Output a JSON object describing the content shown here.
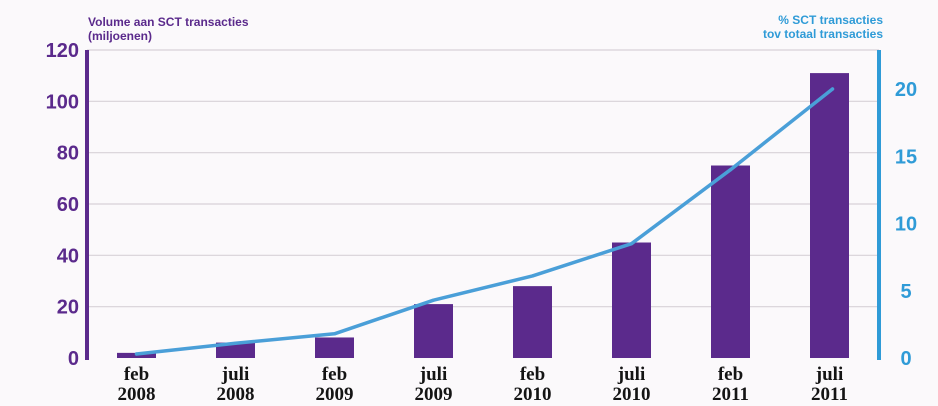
{
  "chart_data": {
    "type": "bar",
    "categories": [
      "feb 2008",
      "juli 2008",
      "feb 2009",
      "juli 2009",
      "feb 2010",
      "juli 2010",
      "feb 2011",
      "juli 2011"
    ],
    "category_lines": [
      [
        "feb",
        "2008"
      ],
      [
        "juli",
        "2008"
      ],
      [
        "feb",
        "2009"
      ],
      [
        "juli",
        "2009"
      ],
      [
        "feb",
        "2010"
      ],
      [
        "juli",
        "2010"
      ],
      [
        "feb",
        "2011"
      ],
      [
        "juli",
        "2011"
      ]
    ],
    "series": [
      {
        "name": "Volume aan SCT transacties (miljoenen)",
        "type": "bar",
        "axis": "left",
        "color": "#5b2a8c",
        "values": [
          2,
          6,
          8,
          21,
          28,
          45,
          75,
          111
        ]
      },
      {
        "name": "% SCT transacties tov totaal transacties",
        "type": "line",
        "axis": "right",
        "color": "#4a9fd8",
        "values": [
          0.3,
          1.1,
          1.8,
          4.3,
          6.1,
          8.5,
          14.0,
          20.0
        ]
      }
    ],
    "left_axis": {
      "title_lines": [
        "Volume aan SCT transacties",
        "(miljoenen)"
      ],
      "ticks": [
        "0",
        "20",
        "40",
        "60",
        "80",
        "100",
        "120"
      ],
      "ylim": [
        0,
        120
      ]
    },
    "right_axis": {
      "title_lines": [
        "% SCT transacties",
        "tov totaal transacties"
      ],
      "ticks": [
        "0",
        "5",
        "10",
        "15",
        "20"
      ],
      "ylim": [
        0,
        22.9
      ]
    },
    "grid": true,
    "colors": {
      "left_axis": "#5b2a8c",
      "right_axis": "#2f9bd7",
      "grid": "#d8d2d8"
    }
  }
}
